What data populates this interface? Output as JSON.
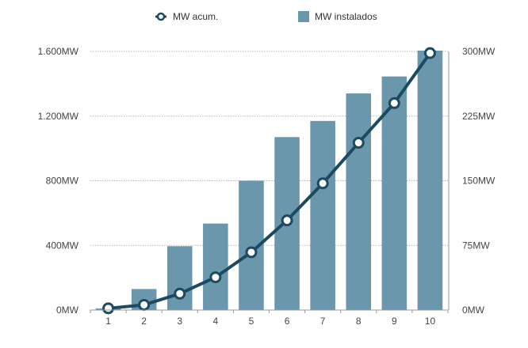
{
  "chart_data": {
    "type": "bar",
    "categories": [
      "1",
      "2",
      "3",
      "4",
      "5",
      "6",
      "7",
      "8",
      "9",
      "10"
    ],
    "series": [
      {
        "name": "MW instalados",
        "type": "bar",
        "axis": "left",
        "values": [
          10,
          130,
          395,
          535,
          800,
          1070,
          1170,
          1340,
          1445,
          1605
        ]
      },
      {
        "name": "MW acum.",
        "type": "line",
        "axis": "right",
        "values": [
          2,
          6,
          19,
          38,
          67,
          104,
          147,
          194,
          240,
          298
        ]
      }
    ],
    "y_left": {
      "min": 0,
      "max": 1600,
      "ticks": [
        "0MW",
        "400MW",
        "800MW",
        "1.200MW",
        "1.600MW"
      ],
      "tick_values": [
        0,
        400,
        800,
        1200,
        1600
      ]
    },
    "y_right": {
      "min": 0,
      "max": 300,
      "ticks": [
        "0MW",
        "75MW",
        "150MW",
        "225MW",
        "300MW"
      ],
      "tick_values": [
        0,
        75,
        150,
        225,
        300
      ]
    },
    "grid": "dotted horizontal",
    "legend": "top-center",
    "title": "",
    "xlabel": "",
    "ylabel": ""
  },
  "colors": {
    "bar": "#6b97ad",
    "line": "#1c4a61",
    "marker_fill": "#ffffff",
    "grid": "#b5b5b5",
    "axis": "#999999"
  }
}
